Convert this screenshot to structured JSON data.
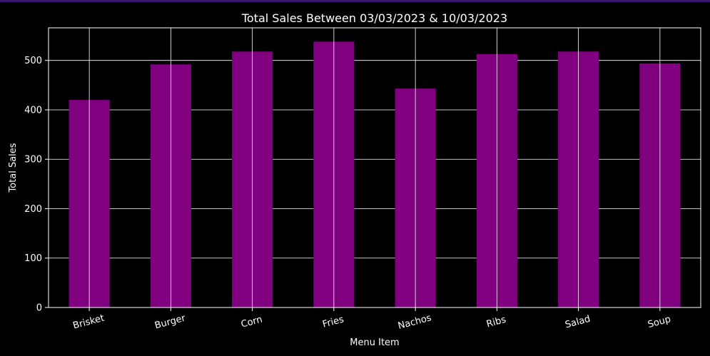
{
  "chart_data": {
    "type": "bar",
    "title": "Total Sales Between 03/03/2023 & 10/03/2023",
    "xlabel": "Menu Item",
    "ylabel": "Total Sales",
    "categories": [
      "Brisket",
      "Burger",
      "Corn",
      "Fries",
      "Nachos",
      "Ribs",
      "Salad",
      "Soup"
    ],
    "values": [
      420,
      492,
      518,
      538,
      443,
      513,
      518,
      494
    ],
    "ylim": [
      0,
      566
    ],
    "yticks": [
      0,
      100,
      200,
      300,
      400,
      500
    ],
    "grid": true,
    "legend": "none"
  },
  "colors": {
    "background": "#000000",
    "bar": "#800080",
    "grid": "#ffffff",
    "axes": "#ffffff",
    "text": "#ffffff",
    "accent": "#3a1670"
  }
}
